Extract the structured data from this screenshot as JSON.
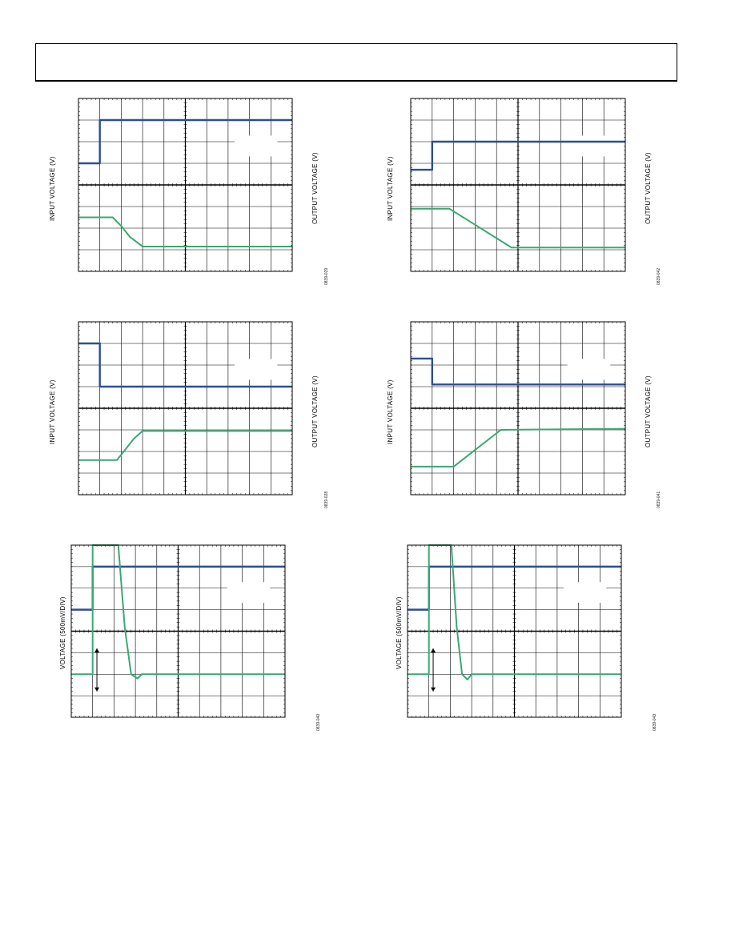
{
  "colors": {
    "input": "#2b4f95",
    "output": "#3aa872",
    "grid": "#000000",
    "frame": "#000000"
  },
  "page": {
    "header_box": ""
  },
  "chart_data": [
    {
      "id": "p1",
      "type": "line",
      "left_label": "INPUT VOLTAGE (V)",
      "right_label": "OUTPUT VOLTAGE (V)",
      "code": "0839-029",
      "xlim": [
        0,
        10
      ],
      "ylim": [
        0,
        8
      ],
      "series": [
        {
          "name": "",
          "color": "input",
          "x": [
            0,
            1,
            1,
            10
          ],
          "y": [
            5,
            5,
            7,
            7
          ]
        },
        {
          "name": "",
          "color": "output",
          "x": [
            0,
            1.6,
            2.0,
            2.4,
            3.0,
            10
          ],
          "y": [
            2.5,
            2.5,
            2.1,
            1.6,
            1.15,
            1.15
          ]
        }
      ]
    },
    {
      "id": "p2",
      "type": "line",
      "left_label": "INPUT VOLTAGE (V)",
      "right_label": "OUTPUT VOLTAGE (V)",
      "code": "0839-042",
      "xlim": [
        0,
        10
      ],
      "ylim": [
        0,
        8
      ],
      "series": [
        {
          "name": "",
          "color": "input",
          "x": [
            0,
            1,
            1,
            10
          ],
          "y": [
            4.7,
            4.7,
            6,
            6
          ]
        },
        {
          "name": "",
          "color": "output",
          "x": [
            0,
            1.8,
            4.7,
            10
          ],
          "y": [
            2.9,
            2.9,
            1.1,
            1.1
          ]
        }
      ]
    },
    {
      "id": "p3",
      "type": "line",
      "left_label": "INPUT VOLTAGE (V)",
      "right_label": "OUTPUT VOLTAGE (V)",
      "code": "0839-028",
      "xlim": [
        0,
        10
      ],
      "ylim": [
        0,
        8
      ],
      "series": [
        {
          "name": "",
          "color": "input",
          "x": [
            0,
            1,
            1,
            10
          ],
          "y": [
            7,
            7,
            5,
            5
          ]
        },
        {
          "name": "",
          "color": "output",
          "x": [
            0,
            1.8,
            2.2,
            2.6,
            3.0,
            10
          ],
          "y": [
            1.6,
            1.6,
            2.1,
            2.6,
            2.95,
            2.95
          ]
        }
      ]
    },
    {
      "id": "p4",
      "type": "line",
      "left_label": "INPUT VOLTAGE (V)",
      "right_label": "OUTPUT VOLTAGE (V)",
      "code": "0839-041",
      "xlim": [
        0,
        10
      ],
      "ylim": [
        0,
        8
      ],
      "series": [
        {
          "name": "",
          "color": "input",
          "x": [
            0,
            1,
            1,
            10
          ],
          "y": [
            6.3,
            6.3,
            5.1,
            5.1
          ]
        },
        {
          "name": "",
          "color": "output",
          "x": [
            0,
            2.0,
            4.2,
            10
          ],
          "y": [
            1.3,
            1.3,
            3.0,
            3.05
          ]
        }
      ]
    },
    {
      "id": "p5",
      "type": "line",
      "left_label": "VOLTAGE (500mV/DIV)",
      "code": "0839-040",
      "xlim": [
        0,
        10
      ],
      "ylim": [
        0,
        8
      ],
      "series": [
        {
          "name": "",
          "color": "input",
          "x": [
            0,
            1,
            1,
            10
          ],
          "y": [
            5,
            5,
            7,
            7
          ]
        },
        {
          "name": "",
          "color": "output",
          "x": [
            0,
            0.95,
            1.0,
            1.0,
            2.2,
            2.5,
            2.8,
            3.1,
            3.3,
            10
          ],
          "y": [
            2,
            2,
            2,
            8,
            8,
            4.2,
            2,
            1.8,
            2,
            2
          ]
        }
      ]
    },
    {
      "id": "p6",
      "type": "line",
      "left_label": "VOLTAGE (500mV/DIV)",
      "code": "0839-043",
      "xlim": [
        0,
        10
      ],
      "ylim": [
        0,
        8
      ],
      "series": [
        {
          "name": "",
          "color": "input",
          "x": [
            0,
            1,
            1,
            10
          ],
          "y": [
            5,
            5,
            7,
            7
          ]
        },
        {
          "name": "",
          "color": "output",
          "x": [
            0,
            0.95,
            1.0,
            1.0,
            2.05,
            2.3,
            2.55,
            2.8,
            3.0,
            10
          ],
          "y": [
            2,
            2,
            2,
            8,
            8,
            4.2,
            2,
            1.75,
            2,
            2
          ]
        }
      ]
    }
  ]
}
